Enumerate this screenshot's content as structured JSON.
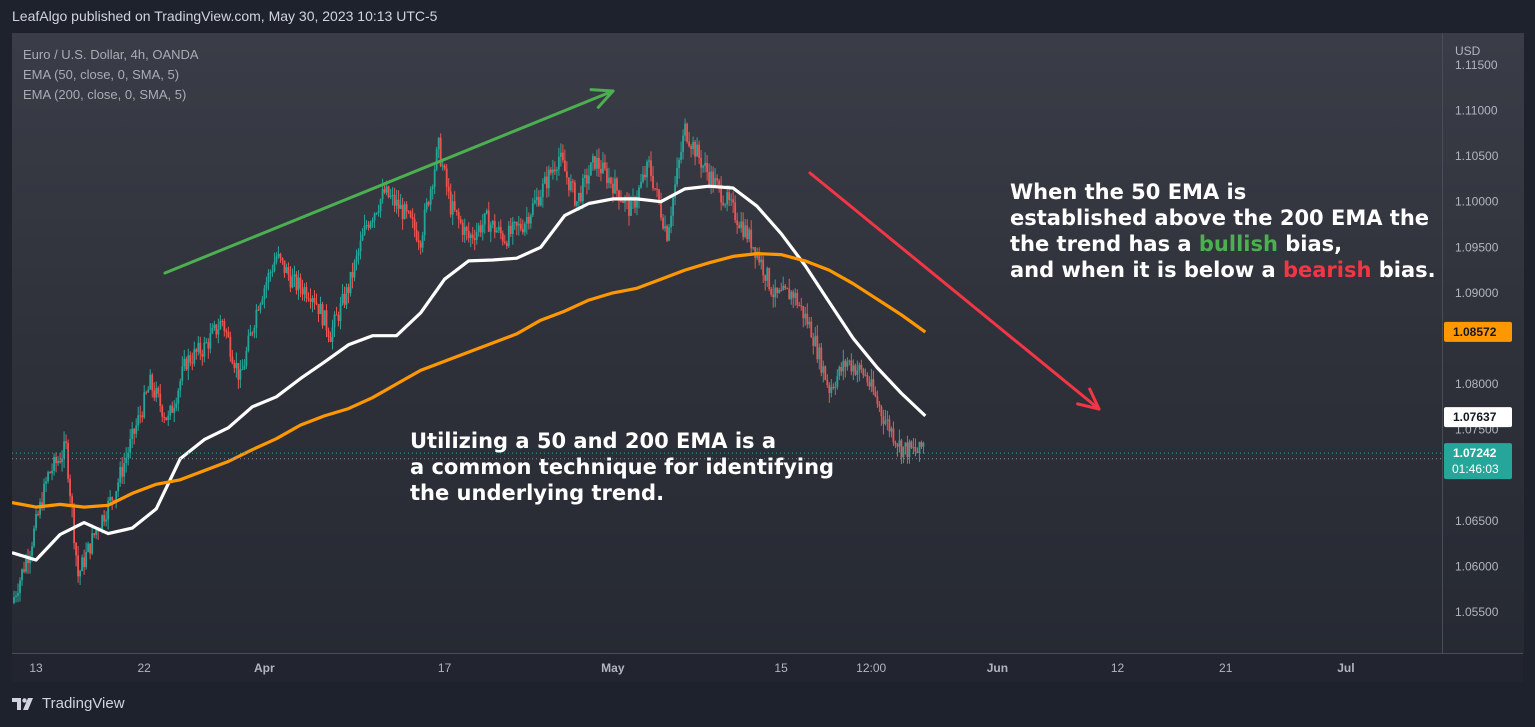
{
  "header": {
    "text": "LeafAlgo published on TradingView.com, May 30, 2023 10:13 UTC-5"
  },
  "legend": {
    "symbol": "Euro / U.S. Dollar, 4h, OANDA",
    "ema50": "EMA (50, close, 0, SMA, 5)",
    "ema200": "EMA (200, close, 0, SMA, 5)"
  },
  "notes": {
    "top": {
      "line1": "When the 50 EMA is",
      "line2": "established above the 200 EMA the",
      "line3a": "the trend has a ",
      "bullish": "bullish",
      "line3b": " bias,",
      "line4a": "and when it is below a ",
      "bearish": "bearish",
      "line4b": " bias."
    },
    "bottom": {
      "line1": "Utilizing a 50 and 200 EMA is a",
      "line2": "a common technique for identifying",
      "line3": "the underlying trend."
    }
  },
  "footer": {
    "brand": "TradingView",
    "logo_icon": "tradingview-logo-icon"
  },
  "colors": {
    "up": "#26a69a",
    "down": "#ef5350",
    "ema50": "#ffffff",
    "ema200": "#ff9800",
    "arrow_up": "#4caf50",
    "arrow_down": "#f23645",
    "current_price": "#26a69a"
  },
  "chart_data": {
    "type": "line",
    "currency": "USD",
    "y_ticks": [
      "1.11500",
      "1.11000",
      "1.10500",
      "1.10000",
      "1.09500",
      "1.09000",
      "1.08000",
      "1.07500",
      "1.06500",
      "1.06000",
      "1.05500"
    ],
    "y_tick_values": [
      1.115,
      1.11,
      1.105,
      1.1,
      1.095,
      1.09,
      1.08,
      1.075,
      1.065,
      1.06,
      1.055
    ],
    "ylim": [
      1.0505,
      1.1185
    ],
    "x_ticks": [
      "13",
      "22",
      "Apr",
      "17",
      "May",
      "15",
      "12:00",
      "Jun",
      "12",
      "21",
      "Jul"
    ],
    "x_tick_days": [
      13,
      22,
      32,
      47,
      61,
      75,
      82.5,
      93,
      103,
      112,
      122
    ],
    "x_day_range": [
      11,
      130
    ],
    "price_labels": {
      "ema200_last": "1.08572",
      "ema50_last": "1.07637",
      "current_price": "1.07242",
      "countdown": "01:46:03"
    },
    "series": [
      {
        "name": "EMA (50, close, 0, SMA, 5)",
        "day": [
          11,
          13,
          15,
          17,
          19,
          21,
          23,
          25,
          27,
          29,
          31,
          33,
          35,
          37,
          39,
          41,
          43,
          45,
          47,
          49,
          51,
          53,
          55,
          57,
          59,
          61,
          63,
          65,
          67,
          69,
          71,
          73,
          75,
          77,
          79,
          81,
          83,
          85,
          87
        ],
        "values": [
          1.0615,
          1.0607,
          1.0635,
          1.0648,
          1.0636,
          1.0642,
          1.0663,
          1.0718,
          1.0739,
          1.0752,
          1.0775,
          1.0786,
          1.0806,
          1.0824,
          1.0843,
          1.0853,
          1.0853,
          1.0878,
          1.0915,
          1.0935,
          1.0936,
          1.0938,
          1.095,
          1.0985,
          1.0998,
          1.1003,
          1.1003,
          1.1,
          1.1014,
          1.1017,
          1.1015,
          1.0995,
          1.0965,
          1.093,
          1.089,
          1.085,
          1.0818,
          1.079,
          1.0765
        ]
      },
      {
        "name": "EMA (200, close, 0, SMA, 5)",
        "day": [
          11,
          13,
          15,
          17,
          19,
          21,
          23,
          25,
          27,
          29,
          31,
          33,
          35,
          37,
          39,
          41,
          43,
          45,
          47,
          49,
          51,
          53,
          55,
          57,
          59,
          61,
          63,
          65,
          67,
          69,
          71,
          73,
          75,
          77,
          79,
          81,
          83,
          85,
          87
        ],
        "values": [
          1.067,
          1.0665,
          1.0668,
          1.0665,
          1.0667,
          1.068,
          1.069,
          1.0695,
          1.0705,
          1.0715,
          1.0728,
          1.074,
          1.0755,
          1.0765,
          1.0773,
          1.0785,
          1.08,
          1.0815,
          1.0825,
          1.0835,
          1.0845,
          1.0855,
          1.087,
          1.088,
          1.0892,
          1.09,
          1.0905,
          1.0915,
          1.0925,
          1.0933,
          1.094,
          1.0943,
          1.0942,
          1.0935,
          1.0925,
          1.091,
          1.0893,
          1.0876,
          1.0857
        ]
      }
    ],
    "candles_close_path": {
      "day": [
        11,
        12.5,
        14,
        15.5,
        16.5,
        18,
        19.5,
        21,
        22.5,
        24,
        25.5,
        27,
        28.5,
        30,
        31.5,
        33,
        34.5,
        36,
        37.5,
        39,
        40.5,
        42,
        43.5,
        45,
        46.5,
        47.5,
        49,
        50.5,
        52,
        53.5,
        55,
        56.5,
        58,
        59.5,
        61,
        62.5,
        64,
        65.5,
        67,
        68.5,
        70,
        71.5,
        73,
        74.5,
        76,
        77.5,
        79,
        80.5,
        82,
        83.5,
        85,
        86.5,
        87
      ],
      "values": [
        1.056,
        1.062,
        1.07,
        1.073,
        1.059,
        1.064,
        1.068,
        1.074,
        1.08,
        1.076,
        1.0825,
        1.084,
        1.087,
        1.0805,
        1.089,
        1.094,
        1.091,
        1.09,
        1.0855,
        1.0905,
        1.0975,
        1.101,
        1.099,
        1.096,
        1.106,
        1.0995,
        1.096,
        1.098,
        1.096,
        1.0975,
        1.101,
        1.105,
        1.1,
        1.1045,
        1.102,
        1.099,
        1.104,
        1.0965,
        1.108,
        1.104,
        1.101,
        1.098,
        1.0945,
        1.0895,
        1.09,
        1.086,
        1.0795,
        1.0825,
        1.081,
        1.0765,
        1.073,
        1.0725,
        1.074
      ]
    }
  }
}
